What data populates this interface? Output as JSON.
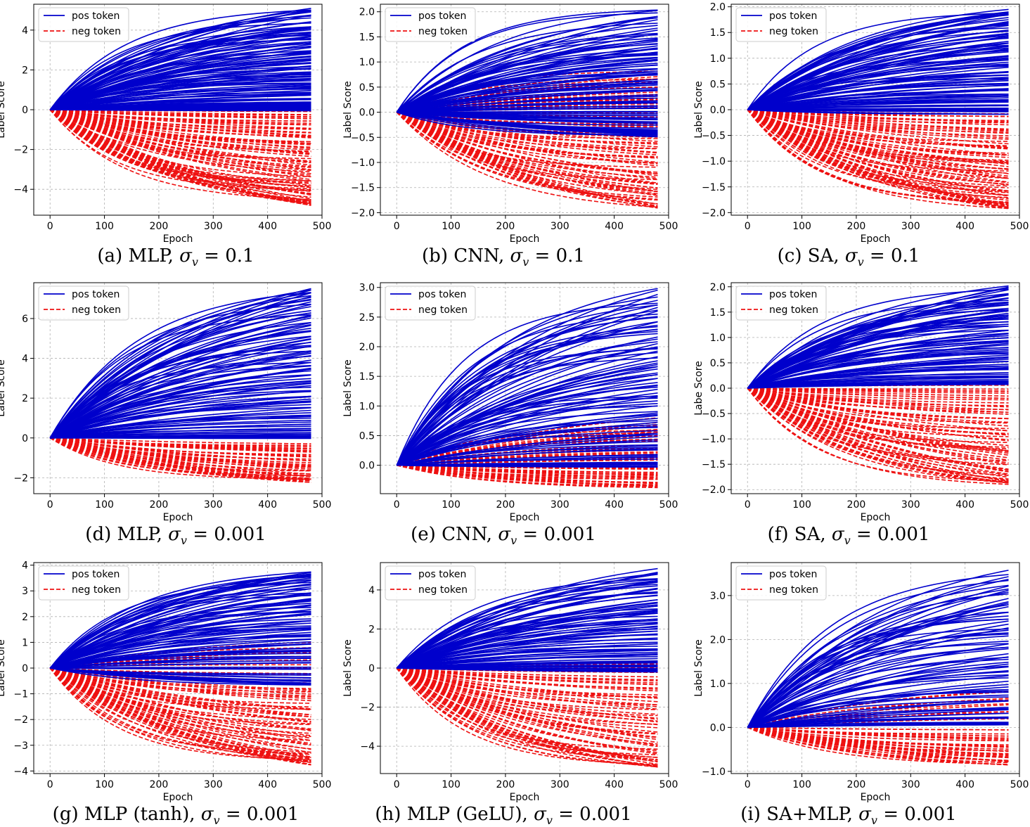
{
  "figure": {
    "legend_labels": [
      "pos token",
      "neg token"
    ],
    "colors": {
      "pos": "#0000cc",
      "neg": "#ee1111",
      "grid": "#b0b0b0",
      "axis": "#000000"
    }
  },
  "chart_data": [
    {
      "id": "a",
      "type": "line",
      "caption_prefix": "(a) MLP,",
      "caption_value": "0.1",
      "xlabel": "Epoch",
      "ylabel": "Label Score",
      "xlim": [
        -30,
        500
      ],
      "ylim": [
        -5.3,
        5.3
      ],
      "xticks": [
        0,
        100,
        200,
        300,
        400,
        500
      ],
      "yticks": [
        -4,
        -2,
        0,
        2,
        4
      ],
      "ytick_labels": [
        "−4",
        "−2",
        "0",
        "2",
        "4"
      ],
      "grid": true,
      "legend_position": "top-left",
      "x_end": 480,
      "series": [
        {
          "name": "pos token",
          "style": "solid",
          "final_values": [
            5.02,
            4.85,
            4.3,
            4.1,
            3.8,
            3.5,
            3.2,
            2.9,
            2.6,
            2.3,
            2.0,
            1.7,
            1.4,
            1.1,
            0.8,
            0.6,
            0.35,
            0.15,
            0.05
          ]
        },
        {
          "name": "neg token",
          "style": "dashed",
          "final_values": [
            0.3,
            -0.3,
            -0.6,
            -1.0,
            -1.4,
            -1.8,
            -2.2,
            -2.6,
            -3.0,
            -3.4,
            -3.7,
            -4.0,
            -4.3,
            -4.55,
            -4.8
          ]
        }
      ]
    },
    {
      "id": "b",
      "type": "line",
      "caption_prefix": "(b) CNN,",
      "caption_value": "0.1",
      "xlabel": "Epoch",
      "ylabel": "Label Score",
      "xlim": [
        -30,
        500
      ],
      "ylim": [
        -2.05,
        2.15
      ],
      "xticks": [
        0,
        100,
        200,
        300,
        400,
        500
      ],
      "yticks": [
        -2.0,
        -1.5,
        -1.0,
        -0.5,
        0.0,
        0.5,
        1.0,
        1.5,
        2.0
      ],
      "ytick_labels": [
        "−2.0",
        "−1.5",
        "−1.0",
        "−0.5",
        "0.0",
        "0.5",
        "1.0",
        "1.5",
        "2.0"
      ],
      "grid": true,
      "legend_position": "top-left",
      "x_end": 480,
      "series": [
        {
          "name": "pos token",
          "style": "solid",
          "final_values": [
            2.03,
            1.82,
            1.55,
            1.4,
            1.25,
            1.1,
            0.95,
            0.8,
            0.65,
            0.5,
            0.35,
            0.2,
            0.05,
            -0.1,
            -0.2,
            -0.35,
            -0.45
          ]
        },
        {
          "name": "neg token",
          "style": "dashed",
          "final_values": [
            0.8,
            0.55,
            0.35,
            0.2,
            0.0,
            -0.2,
            -0.4,
            -0.6,
            -0.8,
            -1.0,
            -1.2,
            -1.4,
            -1.55,
            -1.65,
            -1.87
          ]
        }
      ]
    },
    {
      "id": "c",
      "type": "line",
      "caption_prefix": "(c) SA,",
      "caption_value": "0.1",
      "xlabel": "Epoch",
      "ylabel": "Label Score",
      "xlim": [
        -30,
        500
      ],
      "ylim": [
        -2.05,
        2.05
      ],
      "xticks": [
        0,
        100,
        200,
        300,
        400,
        500
      ],
      "yticks": [
        -2.0,
        -1.5,
        -1.0,
        -0.5,
        0.0,
        0.5,
        1.0,
        1.5,
        2.0
      ],
      "ytick_labels": [
        "−2.0",
        "−1.5",
        "−1.0",
        "−0.5",
        "0.0",
        "0.5",
        "1.0",
        "1.5",
        "2.0"
      ],
      "grid": true,
      "legend_position": "top-left",
      "x_end": 480,
      "series": [
        {
          "name": "pos token",
          "style": "solid",
          "final_values": [
            1.92,
            1.85,
            1.7,
            1.55,
            1.4,
            1.25,
            1.1,
            0.95,
            0.8,
            0.65,
            0.5,
            0.35,
            0.2,
            0.1,
            -0.05
          ]
        },
        {
          "name": "neg token",
          "style": "dashed",
          "final_values": [
            -0.05,
            -0.25,
            -0.45,
            -0.65,
            -0.8,
            -0.95,
            -1.1,
            -1.25,
            -1.4,
            -1.55,
            -1.7,
            -1.82,
            -1.9
          ]
        }
      ]
    },
    {
      "id": "d",
      "type": "line",
      "caption_prefix": "(d) MLP,",
      "caption_value": "0.001",
      "xlabel": "Epoch",
      "ylabel": "Label Score",
      "xlim": [
        -30,
        500
      ],
      "ylim": [
        -2.8,
        7.8
      ],
      "xticks": [
        0,
        100,
        200,
        300,
        400,
        500
      ],
      "yticks": [
        -2,
        0,
        2,
        4,
        6
      ],
      "ytick_labels": [
        "−2",
        "0",
        "2",
        "4",
        "6"
      ],
      "grid": true,
      "legend_position": "top-left",
      "x_end": 480,
      "series": [
        {
          "name": "pos token",
          "style": "solid",
          "final_values": [
            7.5,
            7.2,
            6.7,
            6.2,
            5.7,
            5.2,
            4.7,
            4.2,
            3.7,
            3.2,
            2.7,
            2.2,
            1.7,
            1.2,
            0.7,
            0.3,
            0.05
          ]
        },
        {
          "name": "neg token",
          "style": "dashed",
          "final_values": [
            -0.3,
            -0.6,
            -0.9,
            -1.2,
            -1.5,
            -1.75,
            -2.0,
            -2.15
          ]
        }
      ]
    },
    {
      "id": "e",
      "type": "line",
      "caption_prefix": "(e) CNN,",
      "caption_value": "0.001",
      "xlabel": "Epoch",
      "ylabel": "Label Score",
      "xlim": [
        -30,
        500
      ],
      "ylim": [
        -0.48,
        3.08
      ],
      "xticks": [
        0,
        100,
        200,
        300,
        400,
        500
      ],
      "yticks": [
        0.0,
        0.5,
        1.0,
        1.5,
        2.0,
        2.5,
        3.0
      ],
      "ytick_labels": [
        "0.0",
        "0.5",
        "1.0",
        "1.5",
        "2.0",
        "2.5",
        "3.0"
      ],
      "grid": true,
      "legend_position": "top-left",
      "x_end": 480,
      "series": [
        {
          "name": "pos token",
          "style": "solid",
          "final_values": [
            2.97,
            2.72,
            2.5,
            2.3,
            2.1,
            1.9,
            1.7,
            1.5,
            1.3,
            1.1,
            0.9,
            0.7,
            0.5,
            0.3,
            0.15,
            0.0
          ]
        },
        {
          "name": "neg token",
          "style": "dashed",
          "final_values": [
            0.8,
            0.6,
            0.45,
            0.25,
            0.1,
            -0.05,
            -0.15,
            -0.25,
            -0.35
          ]
        }
      ]
    },
    {
      "id": "f",
      "type": "line",
      "caption_prefix": "(f) SA,",
      "caption_value": "0.001",
      "xlabel": "Epoch",
      "ylabel": "Labe Score",
      "xlim": [
        -30,
        500
      ],
      "ylim": [
        -2.08,
        2.08
      ],
      "xticks": [
        0,
        100,
        200,
        300,
        400,
        500
      ],
      "yticks": [
        -2.0,
        -1.5,
        -1.0,
        -0.5,
        0.0,
        0.5,
        1.0,
        1.5,
        2.0
      ],
      "ytick_labels": [
        "−2.0",
        "−1.5",
        "−1.0",
        "−0.5",
        "0.0",
        "0.5",
        "1.0",
        "1.5",
        "2.0"
      ],
      "grid": true,
      "legend_position": "top-left",
      "x_end": 480,
      "series": [
        {
          "name": "pos token",
          "style": "solid",
          "final_values": [
            2.0,
            1.85,
            1.7,
            1.55,
            1.4,
            1.25,
            1.1,
            0.95,
            0.8,
            0.65,
            0.5,
            0.35,
            0.2,
            0.1
          ]
        },
        {
          "name": "neg token",
          "style": "dashed",
          "final_values": [
            0.05,
            -0.2,
            -0.4,
            -0.6,
            -0.8,
            -1.0,
            -1.2,
            -1.4,
            -1.6,
            -1.75,
            -1.88
          ]
        }
      ]
    },
    {
      "id": "g",
      "type": "line",
      "caption_prefix": "(g) MLP (tanh),",
      "caption_value": "0.001",
      "xlabel": "Epoch",
      "ylabel": "Label Score",
      "xlim": [
        -30,
        500
      ],
      "ylim": [
        -4.1,
        4.1
      ],
      "xticks": [
        0,
        100,
        200,
        300,
        400,
        500
      ],
      "yticks": [
        -4,
        -3,
        -2,
        -1,
        0,
        1,
        2,
        3,
        4
      ],
      "ytick_labels": [
        "−4",
        "−3",
        "−2",
        "−1",
        "0",
        "1",
        "2",
        "3",
        "4"
      ],
      "grid": true,
      "legend_position": "top-left",
      "x_end": 480,
      "series": [
        {
          "name": "pos token",
          "style": "solid",
          "final_values": [
            3.75,
            3.6,
            3.3,
            3.0,
            2.7,
            2.4,
            2.1,
            1.8,
            1.5,
            1.2,
            0.9,
            0.6,
            0.3,
            -0.2,
            -0.6
          ]
        },
        {
          "name": "neg token",
          "style": "dashed",
          "final_values": [
            0.95,
            0.1,
            -0.5,
            -1.0,
            -1.4,
            -1.8,
            -2.2,
            -2.6,
            -3.0,
            -3.3,
            -3.55,
            -3.7
          ]
        }
      ]
    },
    {
      "id": "h",
      "type": "line",
      "caption_prefix": "(h) MLP (GeLU),",
      "caption_value": "0.001",
      "xlabel": "Epoch",
      "ylabel": "Label Score",
      "xlim": [
        -30,
        500
      ],
      "ylim": [
        -5.4,
        5.4
      ],
      "xticks": [
        0,
        100,
        200,
        300,
        400,
        500
      ],
      "yticks": [
        -4,
        -2,
        0,
        2,
        4
      ],
      "ytick_labels": [
        "−4",
        "−2",
        "0",
        "2",
        "4"
      ],
      "grid": true,
      "legend_position": "top-left",
      "x_end": 480,
      "series": [
        {
          "name": "pos token",
          "style": "solid",
          "final_values": [
            5.0,
            4.6,
            4.2,
            3.8,
            3.4,
            3.0,
            2.6,
            2.2,
            1.8,
            1.4,
            1.0,
            0.6,
            0.2,
            -0.1
          ]
        },
        {
          "name": "neg token",
          "style": "dashed",
          "final_values": [
            0.3,
            -0.3,
            -0.9,
            -1.5,
            -2.1,
            -2.7,
            -3.3,
            -3.9,
            -4.4,
            -4.8,
            -5.0
          ]
        }
      ]
    },
    {
      "id": "i",
      "type": "line",
      "caption_prefix": "(i) SA+MLP,",
      "caption_value": "0.001",
      "xlabel": "Epoch",
      "ylabel": "Label Score",
      "xlim": [
        -30,
        500
      ],
      "ylim": [
        -1.05,
        3.75
      ],
      "xticks": [
        0,
        100,
        200,
        300,
        400,
        500
      ],
      "yticks": [
        -1.0,
        0.0,
        1.0,
        2.0,
        3.0
      ],
      "ytick_labels": [
        "−1.0",
        "0.0",
        "1.0",
        "2.0",
        "3.0"
      ],
      "grid": true,
      "legend_position": "top-left",
      "x_end": 480,
      "series": [
        {
          "name": "pos token",
          "style": "solid",
          "final_values": [
            3.55,
            3.2,
            2.9,
            2.6,
            2.3,
            2.0,
            1.7,
            1.4,
            1.1,
            0.8,
            0.5,
            0.25,
            0.1
          ]
        },
        {
          "name": "neg token",
          "style": "dashed",
          "final_values": [
            0.85,
            0.4,
            -0.1,
            -0.3,
            -0.45,
            -0.6,
            -0.72,
            -0.82
          ]
        }
      ]
    }
  ]
}
